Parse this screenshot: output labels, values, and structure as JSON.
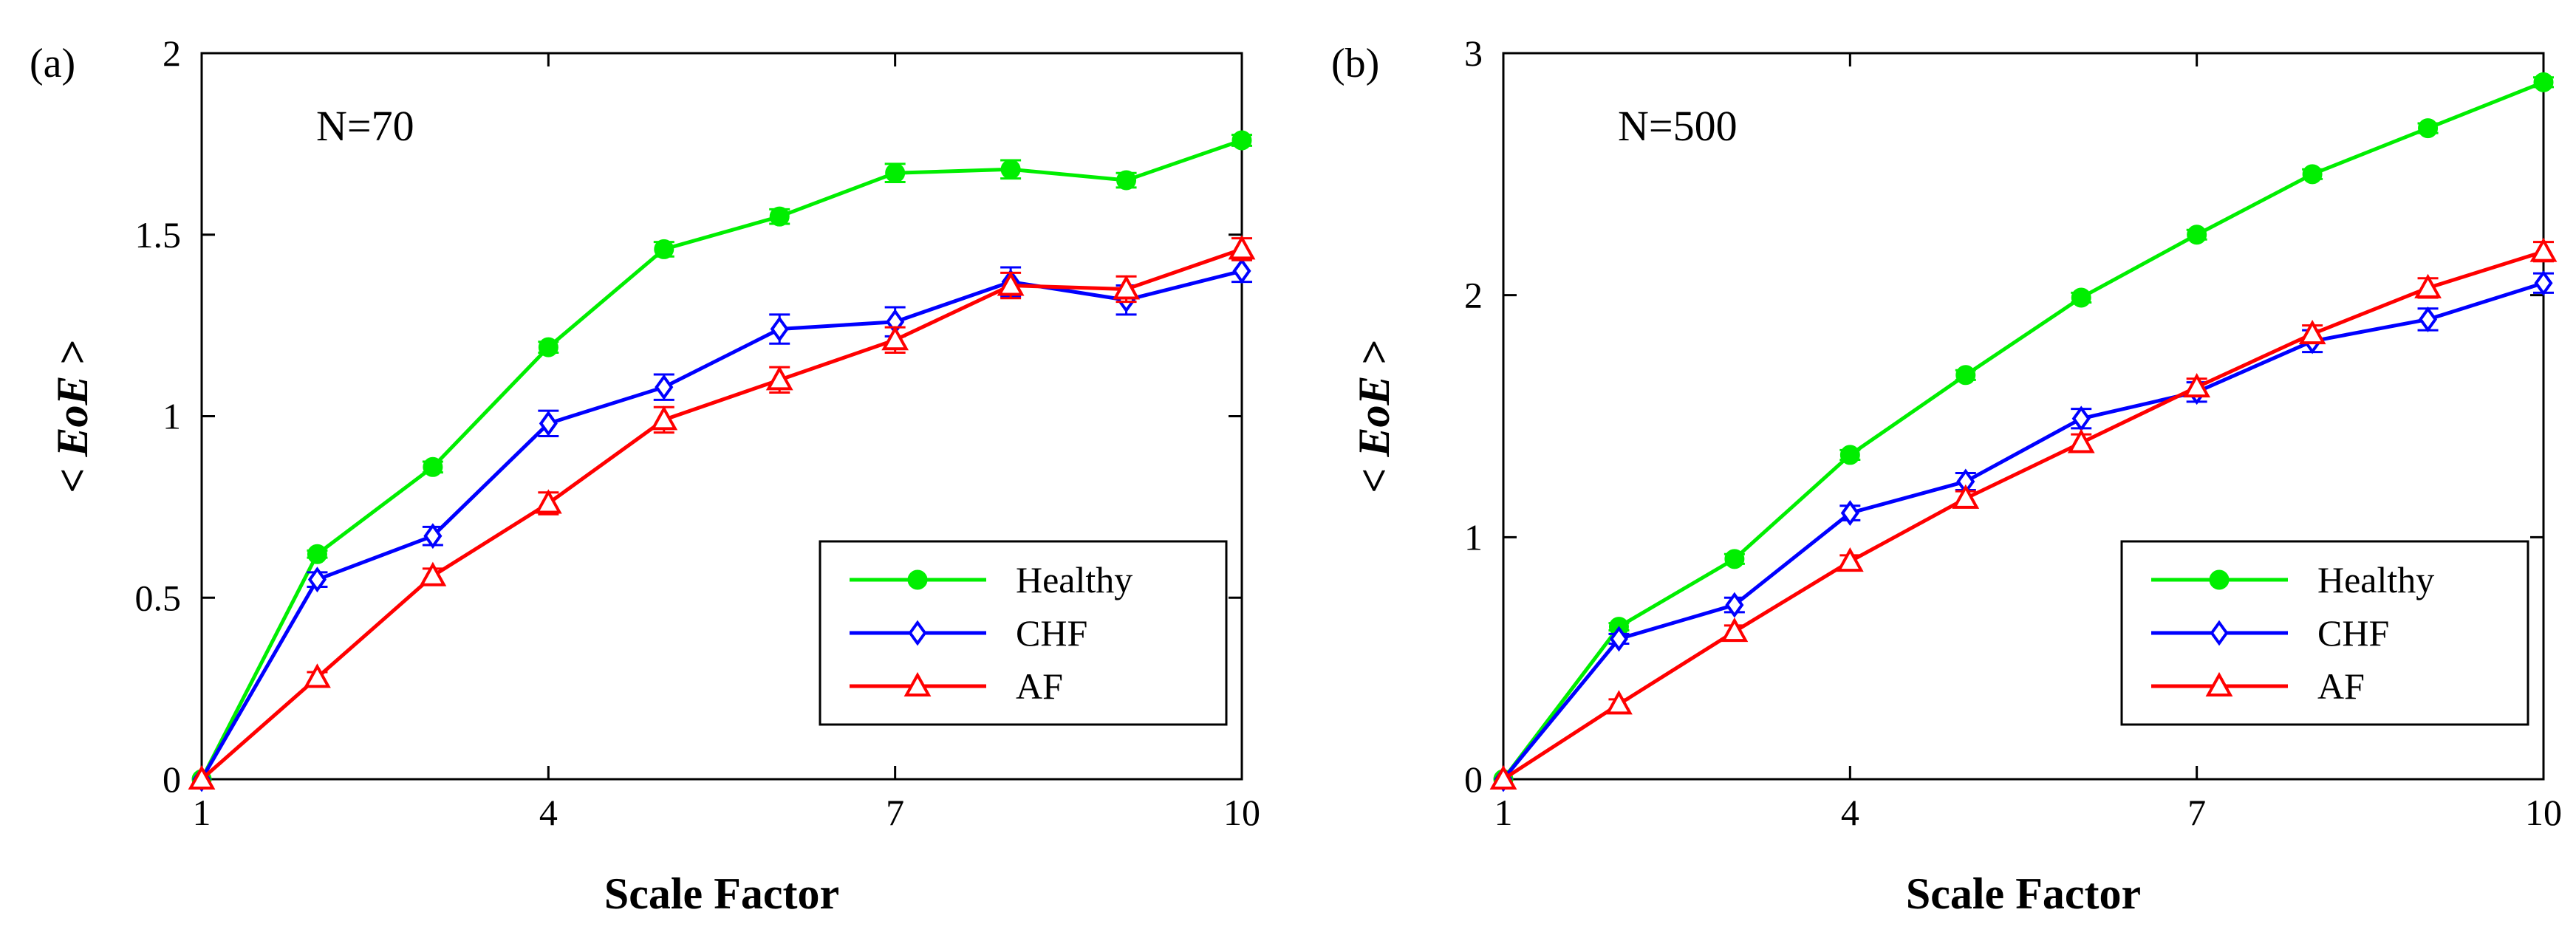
{
  "chart_data": [
    {
      "type": "line",
      "panel_label": "(a)",
      "annotation": "N=70",
      "xlabel": "Scale Factor",
      "ylabel_prefix": "< ",
      "ylabel_main": "EoE",
      "ylabel_suffix": " >",
      "xlim": [
        1,
        10
      ],
      "ylim": [
        0,
        2
      ],
      "xticks": [
        1,
        4,
        7,
        10
      ],
      "yticks": [
        0,
        0.5,
        1,
        1.5,
        2
      ],
      "xtick_labels": [
        "1",
        "4",
        "7",
        "10"
      ],
      "ytick_labels": [
        "0",
        "0.5",
        "1",
        "1.5",
        "2"
      ],
      "legend_position": "bottom-right",
      "x": [
        1,
        2,
        3,
        4,
        5,
        6,
        7,
        8,
        9,
        10
      ],
      "series": [
        {
          "name": "Healthy",
          "color": "#00ee00",
          "marker": "circle",
          "values": [
            0,
            0.62,
            0.86,
            1.19,
            1.46,
            1.55,
            1.67,
            1.68,
            1.65,
            1.76
          ],
          "errors": [
            0,
            0.01,
            0.015,
            0.015,
            0.02,
            0.02,
            0.025,
            0.025,
            0.02,
            0.015
          ]
        },
        {
          "name": "CHF",
          "color": "#0000ff",
          "marker": "diamond",
          "values": [
            0,
            0.55,
            0.67,
            0.98,
            1.08,
            1.24,
            1.26,
            1.37,
            1.32,
            1.4
          ],
          "errors": [
            0,
            0.02,
            0.025,
            0.035,
            0.035,
            0.04,
            0.04,
            0.04,
            0.04,
            0.03
          ]
        },
        {
          "name": "AF",
          "color": "#ff0000",
          "marker": "triangle",
          "values": [
            0,
            0.28,
            0.56,
            0.76,
            0.99,
            1.1,
            1.21,
            1.36,
            1.35,
            1.46
          ],
          "errors": [
            0,
            0.015,
            0.02,
            0.03,
            0.035,
            0.035,
            0.035,
            0.035,
            0.035,
            0.03
          ]
        }
      ]
    },
    {
      "type": "line",
      "panel_label": "(b)",
      "annotation": "N=500",
      "xlabel": "Scale Factor",
      "ylabel_prefix": "< ",
      "ylabel_main": "EoE",
      "ylabel_suffix": " >",
      "xlim": [
        1,
        10
      ],
      "ylim": [
        0,
        3
      ],
      "xticks": [
        1,
        4,
        7,
        10
      ],
      "yticks": [
        0,
        1,
        2,
        3
      ],
      "xtick_labels": [
        "1",
        "4",
        "7",
        "10"
      ],
      "ytick_labels": [
        "0",
        "1",
        "2",
        "3"
      ],
      "legend_position": "bottom-right",
      "x": [
        1,
        2,
        3,
        4,
        5,
        6,
        7,
        8,
        9,
        10
      ],
      "series": [
        {
          "name": "Healthy",
          "color": "#00ee00",
          "marker": "circle",
          "values": [
            0,
            0.63,
            0.91,
            1.34,
            1.67,
            1.99,
            2.25,
            2.5,
            2.69,
            2.88
          ],
          "errors": [
            0,
            0.015,
            0.02,
            0.02,
            0.02,
            0.02,
            0.02,
            0.02,
            0.02,
            0.02
          ]
        },
        {
          "name": "CHF",
          "color": "#0000ff",
          "marker": "diamond",
          "values": [
            0,
            0.58,
            0.72,
            1.1,
            1.23,
            1.49,
            1.6,
            1.81,
            1.9,
            2.05
          ],
          "errors": [
            0,
            0.02,
            0.03,
            0.03,
            0.035,
            0.04,
            0.04,
            0.045,
            0.045,
            0.04
          ]
        },
        {
          "name": "AF",
          "color": "#ff0000",
          "marker": "triangle",
          "values": [
            0,
            0.31,
            0.61,
            0.9,
            1.16,
            1.39,
            1.62,
            1.84,
            2.03,
            2.18
          ],
          "errors": [
            0,
            0.02,
            0.025,
            0.025,
            0.03,
            0.035,
            0.035,
            0.035,
            0.04,
            0.04
          ]
        }
      ]
    }
  ]
}
